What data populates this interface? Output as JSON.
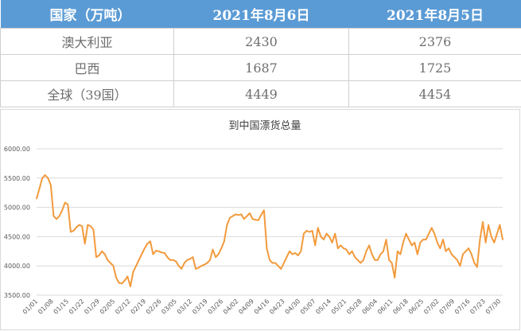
{
  "table": {
    "headers": [
      "国家（万吨）",
      "2021年8月6日",
      "2021年8月5日"
    ],
    "rows": [
      [
        "澳大利亚",
        "2430",
        "2376"
      ],
      [
        "巴西",
        "1687",
        "1725"
      ],
      [
        "全球（39国）",
        "4449",
        "4454"
      ]
    ]
  },
  "chart_data": {
    "type": "line",
    "title": "到中国漂货总量",
    "xlabel": "",
    "ylabel": "",
    "ylim": [
      3500,
      6000
    ],
    "y_ticks": [
      "3500.00",
      "4000.00",
      "4500.00",
      "5000.00",
      "5500.00",
      "6000.00"
    ],
    "x_ticks": [
      "01/01",
      "01/08",
      "01/15",
      "01/22",
      "01/29",
      "02/05",
      "02/12",
      "02/19",
      "02/26",
      "03/05",
      "03/12",
      "03/19",
      "03/26",
      "04/02",
      "04/09",
      "04/16",
      "04/23",
      "04/30",
      "05/07",
      "05/14",
      "05/21",
      "05/28",
      "06/04",
      "06/11",
      "06/18",
      "06/25",
      "07/02",
      "07/09",
      "07/16",
      "07/23",
      "07/30"
    ],
    "grid": true,
    "series": [
      {
        "color": "#f29a3c",
        "points": [
          [
            1,
            5150
          ],
          [
            2,
            5320
          ],
          [
            3,
            5500
          ],
          [
            4,
            5550
          ],
          [
            5,
            5500
          ],
          [
            6,
            5380
          ],
          [
            7,
            4850
          ],
          [
            8,
            4800
          ],
          [
            9,
            4850
          ],
          [
            10,
            4950
          ],
          [
            11,
            5080
          ],
          [
            12,
            5050
          ],
          [
            13,
            4580
          ],
          [
            14,
            4600
          ],
          [
            15,
            4660
          ],
          [
            16,
            4700
          ],
          [
            17,
            4680
          ],
          [
            18,
            4380
          ],
          [
            19,
            4700
          ],
          [
            20,
            4680
          ],
          [
            21,
            4620
          ],
          [
            22,
            4150
          ],
          [
            23,
            4180
          ],
          [
            24,
            4250
          ],
          [
            25,
            4200
          ],
          [
            26,
            4100
          ],
          [
            27,
            4050
          ],
          [
            28,
            4000
          ],
          [
            29,
            3800
          ],
          [
            30,
            3710
          ],
          [
            31,
            3700
          ],
          [
            32,
            3750
          ],
          [
            33,
            3820
          ],
          [
            34,
            3650
          ],
          [
            35,
            3900
          ],
          [
            36,
            4000
          ],
          [
            37,
            4100
          ],
          [
            38,
            4200
          ],
          [
            39,
            4300
          ],
          [
            40,
            4380
          ],
          [
            41,
            4420
          ],
          [
            42,
            4200
          ],
          [
            43,
            4260
          ],
          [
            44,
            4250
          ],
          [
            45,
            4230
          ],
          [
            46,
            4220
          ],
          [
            47,
            4150
          ],
          [
            48,
            4100
          ],
          [
            49,
            4100
          ],
          [
            50,
            4080
          ],
          [
            51,
            4000
          ],
          [
            52,
            3950
          ],
          [
            53,
            4050
          ],
          [
            54,
            4100
          ],
          [
            55,
            4120
          ],
          [
            56,
            4150
          ],
          [
            57,
            3950
          ],
          [
            58,
            3970
          ],
          [
            59,
            4000
          ],
          [
            60,
            4020
          ],
          [
            61,
            4050
          ],
          [
            62,
            4100
          ],
          [
            63,
            4280
          ],
          [
            64,
            4150
          ],
          [
            65,
            4200
          ],
          [
            66,
            4300
          ],
          [
            67,
            4420
          ],
          [
            68,
            4700
          ],
          [
            69,
            4820
          ],
          [
            70,
            4850
          ],
          [
            71,
            4880
          ],
          [
            72,
            4870
          ],
          [
            73,
            4880
          ],
          [
            74,
            4800
          ],
          [
            75,
            4850
          ],
          [
            76,
            4900
          ],
          [
            77,
            4800
          ],
          [
            78,
            4790
          ],
          [
            79,
            4780
          ],
          [
            80,
            4870
          ],
          [
            81,
            4950
          ],
          [
            82,
            4300
          ],
          [
            83,
            4100
          ],
          [
            84,
            4050
          ],
          [
            85,
            4050
          ],
          [
            86,
            4000
          ],
          [
            87,
            3950
          ],
          [
            88,
            4050
          ],
          [
            89,
            4150
          ],
          [
            90,
            4250
          ],
          [
            91,
            4200
          ],
          [
            92,
            4220
          ],
          [
            93,
            4180
          ],
          [
            94,
            4250
          ],
          [
            95,
            4550
          ],
          [
            96,
            4600
          ],
          [
            97,
            4580
          ],
          [
            98,
            4600
          ],
          [
            99,
            4350
          ],
          [
            100,
            4650
          ],
          [
            101,
            4500
          ],
          [
            102,
            4450
          ],
          [
            103,
            4550
          ],
          [
            104,
            4500
          ],
          [
            105,
            4400
          ],
          [
            106,
            4550
          ],
          [
            107,
            4300
          ],
          [
            108,
            4350
          ],
          [
            109,
            4300
          ],
          [
            110,
            4280
          ],
          [
            111,
            4200
          ],
          [
            112,
            4250
          ],
          [
            113,
            4150
          ],
          [
            114,
            4100
          ],
          [
            115,
            4050
          ],
          [
            116,
            4100
          ],
          [
            117,
            4250
          ],
          [
            118,
            4350
          ],
          [
            119,
            4200
          ],
          [
            120,
            4100
          ],
          [
            121,
            4100
          ],
          [
            122,
            4200
          ],
          [
            123,
            4250
          ],
          [
            124,
            4450
          ],
          [
            125,
            4100
          ],
          [
            126,
            4050
          ],
          [
            127,
            3800
          ],
          [
            128,
            4250
          ],
          [
            129,
            4200
          ],
          [
            130,
            4400
          ],
          [
            131,
            4550
          ],
          [
            132,
            4450
          ],
          [
            133,
            4350
          ],
          [
            134,
            4400
          ],
          [
            135,
            4200
          ],
          [
            136,
            4400
          ],
          [
            137,
            4450
          ],
          [
            138,
            4450
          ],
          [
            139,
            4550
          ],
          [
            140,
            4650
          ],
          [
            141,
            4550
          ],
          [
            142,
            4400
          ],
          [
            143,
            4300
          ],
          [
            144,
            4450
          ],
          [
            145,
            4250
          ],
          [
            146,
            4300
          ],
          [
            147,
            4200
          ],
          [
            148,
            4150
          ],
          [
            149,
            4100
          ],
          [
            150,
            4000
          ],
          [
            151,
            4200
          ],
          [
            152,
            4250
          ],
          [
            153,
            4300
          ],
          [
            154,
            4200
          ],
          [
            155,
            4050
          ],
          [
            156,
            3980
          ],
          [
            157,
            4450
          ],
          [
            158,
            4750
          ],
          [
            159,
            4400
          ],
          [
            160,
            4700
          ],
          [
            161,
            4500
          ],
          [
            162,
            4400
          ],
          [
            163,
            4550
          ],
          [
            164,
            4700
          ],
          [
            165,
            4450
          ]
        ]
      }
    ]
  }
}
